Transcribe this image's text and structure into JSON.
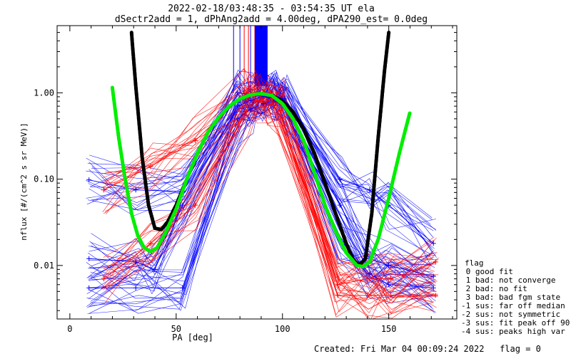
{
  "title_line1": "2022-02-18/03:48:35 - 03:54:35 UT ela",
  "title_line2": "dSectr2add = 1, dPhAng2add = 4.00deg, dPA290_est=   0.0deg",
  "footer": "Created: Fri Mar 04 00:09:24 2022   flag = 0",
  "legend": {
    "title": "flag",
    "items": [
      " 0 good fit",
      " 1 bad: not converge",
      " 2 bad: no fit",
      " 3 bad: bad fgm state",
      "-1 sus: far off median",
      "-2 sus: not symmetric",
      "-3 sus: fit peak off 90",
      "-4 sus: peaks high var"
    ]
  },
  "colors": {
    "blue": "#0000ff",
    "red": "#ff0000",
    "green": "#00ee00",
    "black": "#000000"
  },
  "chart_data": {
    "type": "line",
    "xlabel": "PA [deg]",
    "ylabel": "nflux [#/(cm^2 s sr MeV)]",
    "xlim": [
      -6,
      182
    ],
    "ylim": [
      0.0024,
      6.0
    ],
    "yscale": "log",
    "xticks": [
      0,
      50,
      100,
      150
    ],
    "xtick_labels": [
      "0",
      "50",
      "100",
      "150"
    ],
    "yticks": [
      0.01,
      0.1,
      1.0
    ],
    "ytick_labels": [
      "0.01",
      "0.10",
      "1.00"
    ],
    "series": [
      {
        "color": "blue",
        "style": "thin line with + markers",
        "x": [
          9,
          31,
          53,
          79,
          85,
          91,
          96,
          101,
          127,
          141,
          150,
          171
        ],
        "y": [
          0.098,
          0.075,
          0.072,
          1.0,
          0.95,
          0.9,
          0.92,
          0.85,
          0.1,
          0.075,
          0.05,
          0.018
        ]
      },
      {
        "color": "blue",
        "style": "thin line with + markers",
        "x": [
          9,
          31,
          40,
          53,
          79,
          85,
          91,
          96,
          101,
          127,
          141,
          150,
          171
        ],
        "y": [
          0.012,
          0.011,
          0.009,
          0.05,
          0.7,
          0.82,
          0.9,
          0.88,
          0.7,
          0.05,
          0.012,
          0.01,
          0.0075
        ]
      },
      {
        "color": "blue",
        "style": "thin line with + markers",
        "x": [
          9,
          31,
          53,
          79,
          85,
          91,
          96,
          101,
          127,
          141,
          150,
          171
        ],
        "y": [
          0.0055,
          0.0055,
          0.0055,
          0.5,
          0.65,
          0.75,
          0.8,
          0.7,
          0.02,
          0.008,
          0.006,
          0.0055
        ]
      },
      {
        "color": "red",
        "style": "thin line with + markers",
        "x": [
          16,
          38,
          59,
          83,
          88,
          94,
          99,
          126,
          140,
          151,
          172
        ],
        "y": [
          0.075,
          0.14,
          0.28,
          1.0,
          0.95,
          0.8,
          0.75,
          0.006,
          0.007,
          0.007,
          0.011
        ]
      },
      {
        "color": "red",
        "style": "thin line with + markers",
        "x": [
          16,
          38,
          59,
          83,
          88,
          94,
          99,
          126,
          140,
          151,
          172
        ],
        "y": [
          0.007,
          0.018,
          0.05,
          0.6,
          0.82,
          0.75,
          0.62,
          0.0045,
          0.0045,
          0.0045,
          0.0045
        ]
      },
      {
        "color": "black",
        "style": "thick dashed fit",
        "x": [
          29,
          31,
          34,
          37,
          40,
          43,
          46,
          50,
          55,
          60,
          65,
          70,
          75,
          80,
          85,
          90,
          95,
          100,
          105,
          110,
          115,
          120,
          125,
          130,
          133,
          136,
          139,
          142,
          145,
          148,
          150
        ],
        "y": [
          5.0,
          1.2,
          0.18,
          0.05,
          0.027,
          0.026,
          0.032,
          0.05,
          0.1,
          0.2,
          0.35,
          0.52,
          0.7,
          0.85,
          0.95,
          0.98,
          0.93,
          0.8,
          0.6,
          0.38,
          0.2,
          0.09,
          0.04,
          0.018,
          0.012,
          0.01,
          0.012,
          0.04,
          0.3,
          1.8,
          5.0
        ]
      },
      {
        "color": "green",
        "style": "thick dashed fit",
        "x": [
          20,
          23,
          26,
          29,
          32,
          35,
          38,
          41,
          45,
          50,
          55,
          60,
          65,
          70,
          75,
          80,
          85,
          90,
          95,
          100,
          105,
          110,
          115,
          120,
          125,
          130,
          135,
          138,
          141,
          145,
          150,
          155,
          160
        ],
        "y": [
          1.15,
          0.3,
          0.1,
          0.04,
          0.022,
          0.016,
          0.0145,
          0.016,
          0.024,
          0.045,
          0.1,
          0.2,
          0.35,
          0.52,
          0.7,
          0.85,
          0.95,
          0.98,
          0.93,
          0.75,
          0.5,
          0.28,
          0.12,
          0.05,
          0.025,
          0.014,
          0.01,
          0.0097,
          0.011,
          0.02,
          0.06,
          0.2,
          0.6
        ]
      }
    ]
  }
}
